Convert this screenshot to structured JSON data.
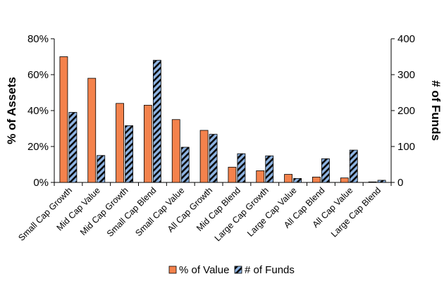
{
  "chart_data": {
    "type": "bar",
    "categories": [
      "Small Cap Growth",
      "Mid Cap Value",
      "Mid Cap Growth",
      "Small Cap Blend",
      "Small Cap Value",
      "All Cap Growth",
      "Mid Cap Blend",
      "Large Cap Growth",
      "Large Cap Value",
      "All Cap Blend",
      "All Cap Value",
      "Large Cap Blend"
    ],
    "series": [
      {
        "name": "% of Value",
        "axis": "left",
        "values": [
          0.7,
          0.58,
          0.44,
          0.43,
          0.35,
          0.29,
          0.085,
          0.065,
          0.045,
          0.03,
          0.025,
          0.003
        ],
        "color": "#F4824C",
        "pattern": "solid"
      },
      {
        "name": "# of Funds",
        "axis": "right",
        "values": [
          195,
          75,
          158,
          340,
          98,
          134,
          80,
          74,
          11,
          66,
          90,
          6
        ],
        "color": "#8EB4E3",
        "pattern": "diagonal-stripes"
      }
    ],
    "ylabel": "% of Assets",
    "ylabel_right": "# of Funds",
    "ylim": [
      0,
      0.8
    ],
    "ylim_right": [
      0,
      400
    ],
    "yticks": [
      "0%",
      "20%",
      "40%",
      "60%",
      "80%"
    ],
    "yticks_right": [
      "0",
      "100",
      "200",
      "300",
      "400"
    ],
    "grid": false,
    "legend_position": "bottom"
  }
}
